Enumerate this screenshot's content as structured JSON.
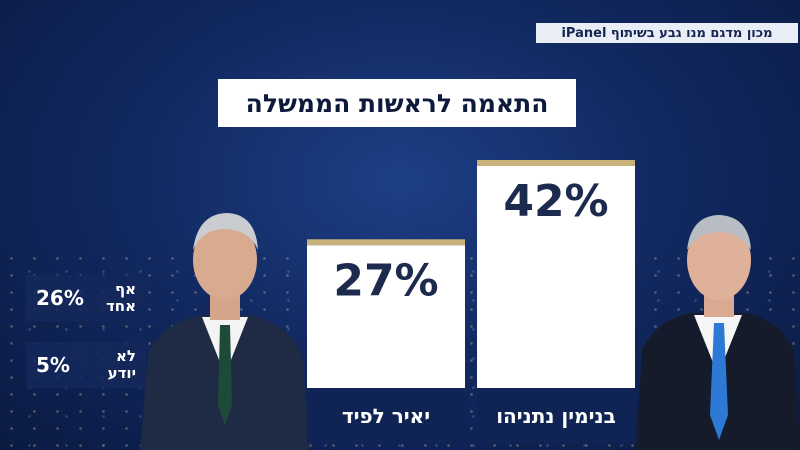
{
  "source_text": "מכון מדגם מנו גבע בשיתוף iPanel",
  "chart_data": {
    "type": "bar",
    "title": "התאמה לראשות הממשלה",
    "categories": [
      "בנימין נתניהו",
      "יאיר לפיד"
    ],
    "values": [
      42,
      27
    ],
    "value_labels": [
      "42%",
      "27%"
    ],
    "ylim": [
      0,
      45
    ],
    "grid": false,
    "legend": "none",
    "colors": {
      "bar": "#ffffff",
      "bar_top": "#c9b27a",
      "label_bg": "#0f2454",
      "value_text": "#1c2a4d"
    }
  },
  "side_stats": [
    {
      "label": "אף אחד",
      "value": "26%"
    },
    {
      "label": "לא יודע",
      "value": "5%"
    }
  ]
}
